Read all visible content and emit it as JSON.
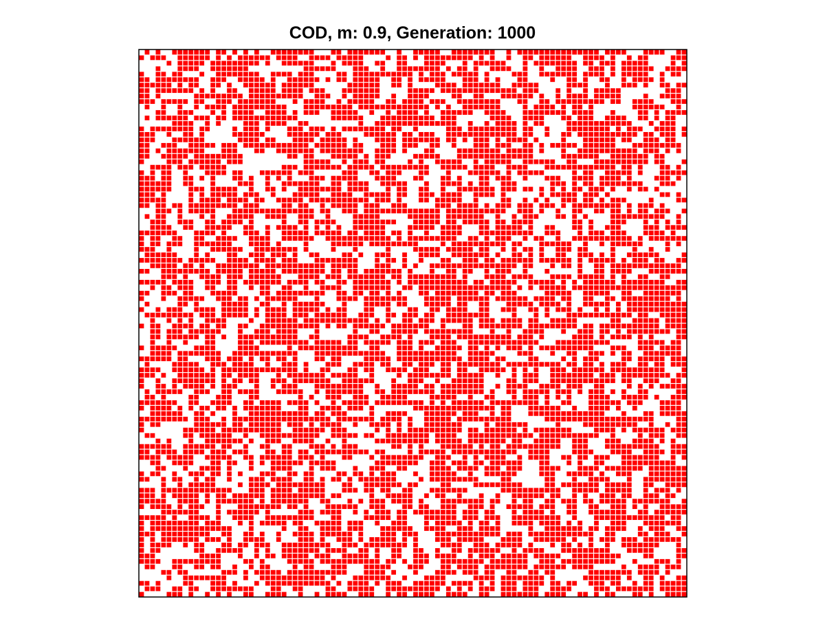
{
  "chart_data": {
    "type": "heatmap",
    "title": "COD, m: 0.9, Generation: 1000",
    "xlabel": "",
    "ylabel": "",
    "grid": false,
    "rows": 100,
    "cols": 100,
    "occupied_fraction": 0.6,
    "colors": {
      "cell": "#ff0000",
      "empty": "#ffffff",
      "axes_border": "#000000",
      "cell_edge": "#ffffff"
    },
    "legend": null
  }
}
